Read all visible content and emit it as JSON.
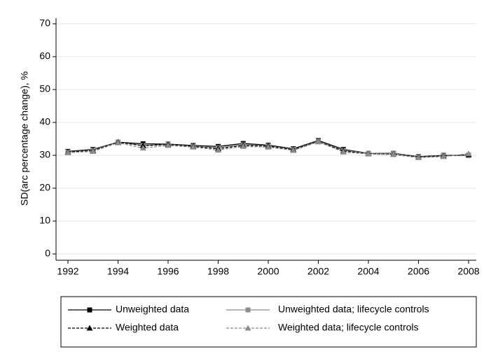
{
  "chart_data": {
    "type": "line",
    "y_label": "SD(arc percentage change), %",
    "x": [
      1992,
      1993,
      1994,
      1995,
      1996,
      1997,
      1998,
      1999,
      2000,
      2001,
      2002,
      2003,
      2004,
      2005,
      2006,
      2007,
      2008
    ],
    "xlim": [
      1992,
      2008
    ],
    "xticks": [
      1992,
      1994,
      1996,
      1998,
      2000,
      2002,
      2004,
      2006,
      2008
    ],
    "ylim": [
      0,
      70
    ],
    "yticks": [
      0,
      10,
      20,
      30,
      40,
      50,
      60,
      70
    ],
    "grid": true,
    "legend": "bottom",
    "series": [
      {
        "name": "Unweighted data",
        "color": "#000000",
        "dash": "solid",
        "marker": "square",
        "values": [
          31.2,
          31.8,
          34.0,
          33.5,
          33.4,
          33.0,
          32.7,
          33.6,
          33.1,
          32.0,
          34.5,
          31.8,
          30.6,
          30.6,
          29.6,
          30.0,
          30.0
        ]
      },
      {
        "name": "Unweighted data; lifecycle controls",
        "color": "#8c8c8c",
        "dash": "solid",
        "marker": "square",
        "values": [
          31.0,
          31.6,
          34.0,
          33.0,
          33.3,
          32.8,
          32.3,
          33.2,
          32.9,
          31.8,
          34.3,
          31.5,
          30.6,
          30.5,
          29.5,
          29.9,
          29.9
        ]
      },
      {
        "name": "Weighted data",
        "color": "#000000",
        "dash": "dashed",
        "marker": "triangle",
        "values": [
          31.0,
          31.4,
          34.0,
          32.9,
          33.3,
          32.7,
          32.0,
          33.0,
          32.8,
          31.7,
          34.2,
          31.3,
          30.5,
          30.3,
          29.5,
          29.8,
          30.2
        ]
      },
      {
        "name": "Weighted data; lifecycle controls",
        "color": "#8c8c8c",
        "dash": "dashed",
        "marker": "triangle",
        "values": [
          30.8,
          31.2,
          33.8,
          32.2,
          33.0,
          32.5,
          31.6,
          32.7,
          32.5,
          31.5,
          34.1,
          31.0,
          30.4,
          30.2,
          29.3,
          29.6,
          30.5
        ]
      }
    ]
  }
}
